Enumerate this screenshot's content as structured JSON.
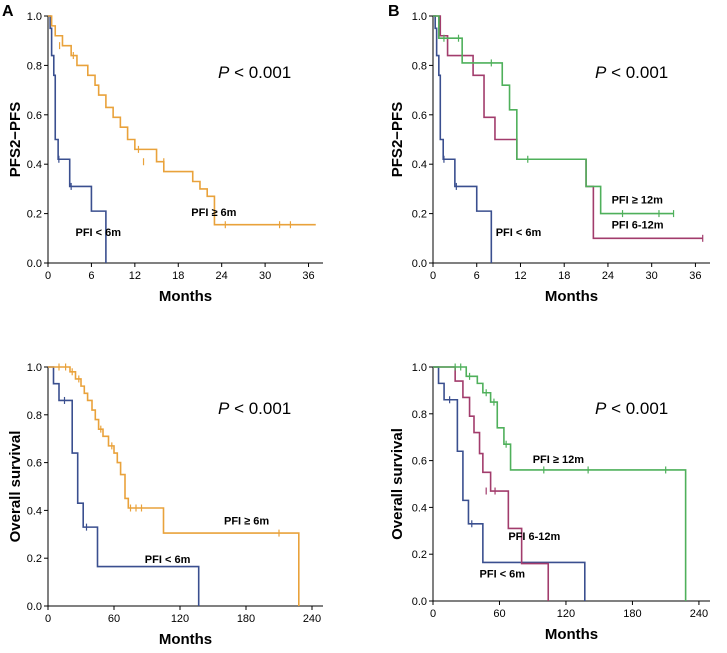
{
  "colors": {
    "pfi_lt_6m": "#3a4f8f",
    "pfi_ge_6m": "#e9a23b",
    "pfi_6_12m": "#a23c6c",
    "pfi_ge_12m": "#4fb05b"
  },
  "chart_data": [
    {
      "type": "line",
      "panel": "A",
      "title": "",
      "xlabel": "Months",
      "ylabel": "PFS2−PFS",
      "annotation": "< 0.001",
      "p_symbol": "P",
      "xlim": [
        0,
        38
      ],
      "ylim": [
        0,
        1.0
      ],
      "x_ticks": [
        "0",
        "6",
        "12",
        "18",
        "24",
        "30",
        "36"
      ],
      "x_tick_values": [
        0,
        6,
        12,
        18,
        24,
        30,
        36
      ],
      "y_ticks": [
        "0.0",
        "0.2",
        "0.4",
        "0.6",
        "0.8",
        "1.0"
      ],
      "y_tick_values": [
        0,
        0.2,
        0.4,
        0.6,
        0.8,
        1.0
      ],
      "series": [
        {
          "name": "PFI < 6m",
          "color_key": "pfi_lt_6m",
          "label_pos": [
            3.8,
            0.11
          ],
          "x": [
            0,
            0.3,
            0.5,
            0.8,
            1.0,
            1.4,
            3.0,
            3.8,
            6.0,
            7.0,
            8.0
          ],
          "y": [
            1.0,
            0.95,
            0.84,
            0.76,
            0.5,
            0.42,
            0.31,
            0.31,
            0.21,
            0.21,
            0.0
          ],
          "censor_x": [
            1.5,
            3.2
          ],
          "censor_y": [
            0.42,
            0.31
          ]
        },
        {
          "name": "PFI ≥ 6m",
          "color_key": "pfi_ge_6m",
          "label_pos": [
            19.8,
            0.19
          ],
          "x": [
            0,
            0.5,
            1.0,
            2.0,
            3.2,
            4.0,
            5.5,
            6.5,
            7.0,
            8.0,
            9.0,
            10.0,
            11.0,
            12.0,
            15.0,
            16.0,
            17.0,
            20.0,
            21.0,
            22.0,
            23.0,
            37.0
          ],
          "y": [
            1.0,
            0.96,
            0.92,
            0.88,
            0.84,
            0.8,
            0.76,
            0.72,
            0.68,
            0.63,
            0.59,
            0.55,
            0.5,
            0.46,
            0.41,
            0.37,
            0.37,
            0.33,
            0.3,
            0.27,
            0.155,
            0.155
          ],
          "censor_x": [
            1.6,
            3.5,
            12.5,
            13.2,
            16.0,
            24.5,
            32.0,
            33.5
          ],
          "censor_y": [
            0.88,
            0.84,
            0.46,
            0.41,
            0.41,
            0.155,
            0.155,
            0.155
          ]
        }
      ]
    },
    {
      "type": "line",
      "panel": "B",
      "title": "",
      "xlabel": "Months",
      "ylabel": "PFS2−PFS",
      "annotation": "< 0.001",
      "p_symbol": "P",
      "xlim": [
        0,
        38
      ],
      "ylim": [
        0,
        1.0
      ],
      "x_ticks": [
        "0",
        "6",
        "12",
        "18",
        "24",
        "30",
        "36"
      ],
      "x_tick_values": [
        0,
        6,
        12,
        18,
        24,
        30,
        36
      ],
      "y_ticks": [
        "0.0",
        "0.2",
        "0.4",
        "0.6",
        "0.8",
        "1.0"
      ],
      "y_tick_values": [
        0,
        0.2,
        0.4,
        0.6,
        0.8,
        1.0
      ],
      "series": [
        {
          "name": "PFI < 6m",
          "color_key": "pfi_lt_6m",
          "label_pos": [
            8.6,
            0.11
          ],
          "x": [
            0,
            0.3,
            0.5,
            0.8,
            1.0,
            1.4,
            3.0,
            3.8,
            6.0,
            7.0,
            8.0
          ],
          "y": [
            1.0,
            0.95,
            0.84,
            0.76,
            0.5,
            0.42,
            0.31,
            0.31,
            0.21,
            0.21,
            0.0
          ],
          "censor_x": [
            1.5,
            3.2
          ],
          "censor_y": [
            0.42,
            0.31
          ]
        },
        {
          "name": "PFI 6-12m",
          "color_key": "pfi_6_12m",
          "label_pos": [
            24.5,
            0.14
          ],
          "x": [
            0,
            1.0,
            2.0,
            4.5,
            5.5,
            7.0,
            8.5,
            10.5,
            11.5,
            15.0,
            21.0,
            22.0,
            37.0
          ],
          "y": [
            1.0,
            0.92,
            0.84,
            0.84,
            0.76,
            0.59,
            0.5,
            0.5,
            0.42,
            0.42,
            0.31,
            0.1,
            0.1
          ],
          "censor_x": [
            37.0
          ],
          "censor_y": [
            0.1
          ]
        },
        {
          "name": "PFI ≥ 12m",
          "color_key": "pfi_ge_12m",
          "label_pos": [
            24.5,
            0.24
          ],
          "x": [
            0,
            0.8,
            3.0,
            4.0,
            7.0,
            9.5,
            10.5,
            11.5,
            21.0,
            22.0,
            23.0,
            33.0
          ],
          "y": [
            1.0,
            0.91,
            0.91,
            0.81,
            0.81,
            0.72,
            0.62,
            0.42,
            0.31,
            0.31,
            0.2,
            0.2
          ],
          "censor_x": [
            1.5,
            3.5,
            8.0,
            13.0,
            26.0,
            31.0,
            33.0
          ],
          "censor_y": [
            0.91,
            0.91,
            0.81,
            0.42,
            0.2,
            0.2,
            0.2
          ]
        }
      ]
    },
    {
      "type": "line",
      "panel": "",
      "title": "",
      "xlabel": "Months",
      "ylabel": "Overall survival",
      "annotation": "< 0.001",
      "p_symbol": "P",
      "xlim": [
        0,
        250
      ],
      "ylim": [
        0,
        1.0
      ],
      "x_ticks": [
        "0",
        "60",
        "120",
        "180",
        "240"
      ],
      "x_tick_values": [
        0,
        60,
        120,
        180,
        240
      ],
      "y_ticks": [
        "0.0",
        "0.2",
        "0.4",
        "0.6",
        "0.8",
        "1.0"
      ],
      "y_tick_values": [
        0,
        0.2,
        0.4,
        0.6,
        0.8,
        1.0
      ],
      "series": [
        {
          "name": "PFI < 6m",
          "color_key": "pfi_lt_6m",
          "label_pos": [
            88,
            0.18
          ],
          "x": [
            0,
            5,
            10,
            22,
            27,
            32,
            45,
            120,
            137
          ],
          "y": [
            1.0,
            0.93,
            0.86,
            0.64,
            0.43,
            0.33,
            0.165,
            0.165,
            0.0
          ],
          "censor_x": [
            15,
            35
          ],
          "censor_y": [
            0.86,
            0.33
          ]
        },
        {
          "name": "PFI ≥ 6m",
          "color_key": "pfi_ge_6m",
          "label_pos": [
            160,
            0.34
          ],
          "x": [
            0,
            20,
            25,
            30,
            33,
            36,
            40,
            43,
            46,
            50,
            55,
            60,
            63,
            66,
            70,
            73,
            105,
            225,
            228
          ],
          "y": [
            1.0,
            0.98,
            0.95,
            0.92,
            0.89,
            0.86,
            0.82,
            0.78,
            0.74,
            0.71,
            0.67,
            0.64,
            0.6,
            0.55,
            0.45,
            0.41,
            0.305,
            0.305,
            0.0
          ],
          "censor_x": [
            10,
            16,
            22,
            28,
            48,
            58,
            75,
            80,
            85,
            210
          ],
          "censor_y": [
            1.0,
            1.0,
            0.98,
            0.95,
            0.74,
            0.67,
            0.41,
            0.41,
            0.41,
            0.305
          ]
        }
      ]
    },
    {
      "type": "line",
      "panel": "",
      "title": "",
      "xlabel": "Months",
      "ylabel": "Overall survival",
      "annotation": "< 0.001",
      "p_symbol": "P",
      "xlim": [
        0,
        250
      ],
      "ylim": [
        0,
        1.0
      ],
      "x_ticks": [
        "0",
        "60",
        "120",
        "180",
        "240"
      ],
      "x_tick_values": [
        0,
        60,
        120,
        180,
        240
      ],
      "y_ticks": [
        "0.0",
        "0.2",
        "0.4",
        "0.6",
        "0.8",
        "1.0"
      ],
      "y_tick_values": [
        0,
        0.2,
        0.4,
        0.6,
        0.8,
        1.0
      ],
      "series": [
        {
          "name": "PFI < 6m",
          "color_key": "pfi_lt_6m",
          "label_pos": [
            42,
            0.1
          ],
          "x": [
            0,
            5,
            10,
            22,
            27,
            32,
            45,
            120,
            137
          ],
          "y": [
            1.0,
            0.93,
            0.86,
            0.64,
            0.43,
            0.33,
            0.165,
            0.165,
            0.0
          ],
          "censor_x": [
            15,
            35
          ],
          "censor_y": [
            0.86,
            0.33
          ]
        },
        {
          "name": "PFI 6-12m",
          "color_key": "pfi_6_12m",
          "label_pos": [
            68,
            0.26
          ],
          "x": [
            0,
            20,
            27,
            33,
            37,
            42,
            45,
            52,
            60,
            68,
            80,
            100,
            104
          ],
          "y": [
            1.0,
            0.94,
            0.87,
            0.79,
            0.72,
            0.63,
            0.55,
            0.47,
            0.47,
            0.31,
            0.16,
            0.16,
            0.0
          ],
          "censor_x": [
            48,
            56
          ],
          "censor_y": [
            0.47,
            0.47
          ]
        },
        {
          "name": "PFI ≥ 12m",
          "color_key": "pfi_ge_12m",
          "label_pos": [
            90,
            0.59
          ],
          "x": [
            0,
            30,
            40,
            45,
            52,
            58,
            64,
            70,
            225,
            228
          ],
          "y": [
            1.0,
            0.96,
            0.93,
            0.89,
            0.85,
            0.74,
            0.67,
            0.56,
            0.56,
            0.0
          ],
          "censor_x": [
            20,
            25,
            33,
            48,
            55,
            66,
            100,
            140,
            210
          ],
          "censor_y": [
            1.0,
            1.0,
            0.96,
            0.89,
            0.85,
            0.67,
            0.56,
            0.56,
            0.56
          ]
        }
      ]
    }
  ]
}
